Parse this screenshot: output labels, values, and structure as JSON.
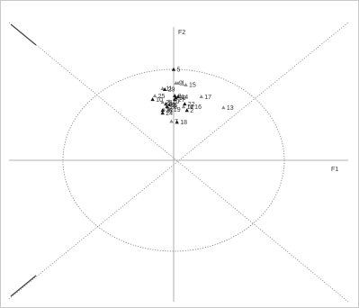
{
  "chart_data": {
    "type": "scatter",
    "title": "",
    "xlabel": "F1",
    "ylabel": "F2",
    "xlim": [
      -1.15,
      1.15
    ],
    "ylim": [
      -1.15,
      1.15
    ],
    "grid": false,
    "legend": "none",
    "circle_radius": 1.0,
    "colors": {
      "filled": "#1a1a1a",
      "hollow": "#8a8a8a",
      "guides": "#888888"
    },
    "points": [
      {
        "label": "1",
        "x": 0.04,
        "y": 0.85,
        "filled": false
      },
      {
        "label": "2",
        "x": 0.12,
        "y": 0.55,
        "filled": true
      },
      {
        "label": "3",
        "x": -0.04,
        "y": 0.61,
        "filled": true
      },
      {
        "label": "4",
        "x": -0.09,
        "y": 0.56,
        "filled": false
      },
      {
        "label": "5",
        "x": 0.0,
        "y": 1.0,
        "filled": true
      },
      {
        "label": "6",
        "x": -0.07,
        "y": 0.62,
        "filled": true
      },
      {
        "label": "7",
        "x": -0.02,
        "y": 0.43,
        "filled": false
      },
      {
        "label": "8",
        "x": 0.01,
        "y": 0.71,
        "filled": true
      },
      {
        "label": "9",
        "x": 0.02,
        "y": 0.85,
        "filled": false
      },
      {
        "label": "10",
        "x": -0.19,
        "y": 0.67,
        "filled": true
      },
      {
        "label": "11",
        "x": -0.1,
        "y": 0.79,
        "filled": false
      },
      {
        "label": "12",
        "x": 0.09,
        "y": 0.59,
        "filled": false
      },
      {
        "label": "13",
        "x": 0.45,
        "y": 0.58,
        "filled": false
      },
      {
        "label": "14",
        "x": 0.04,
        "y": 0.7,
        "filled": true
      },
      {
        "label": "15",
        "x": 0.11,
        "y": 0.83,
        "filled": false
      },
      {
        "label": "16",
        "x": 0.16,
        "y": 0.59,
        "filled": false
      },
      {
        "label": "17",
        "x": 0.25,
        "y": 0.7,
        "filled": false
      },
      {
        "label": "18",
        "x": 0.03,
        "y": 0.42,
        "filled": true
      },
      {
        "label": "19",
        "x": -0.03,
        "y": 0.56,
        "filled": false
      },
      {
        "label": "20",
        "x": -0.04,
        "y": 0.65,
        "filled": false
      },
      {
        "label": "21",
        "x": -0.1,
        "y": 0.64,
        "filled": false
      },
      {
        "label": "22",
        "x": 0.1,
        "y": 0.62,
        "filled": true
      },
      {
        "label": "23",
        "x": -0.1,
        "y": 0.55,
        "filled": true
      },
      {
        "label": "24",
        "x": -0.1,
        "y": 0.52,
        "filled": true
      },
      {
        "label": "25",
        "x": -0.17,
        "y": 0.71,
        "filled": false
      },
      {
        "label": "26",
        "x": -0.06,
        "y": 0.61,
        "filled": false
      },
      {
        "label": "27",
        "x": 0.01,
        "y": 0.67,
        "filled": true
      },
      {
        "label": "28",
        "x": -0.06,
        "y": 0.59,
        "filled": true
      },
      {
        "label": "29",
        "x": -0.08,
        "y": 0.78,
        "filled": true
      },
      {
        "label": "30",
        "x": 0.02,
        "y": 0.69,
        "filled": true
      }
    ]
  }
}
